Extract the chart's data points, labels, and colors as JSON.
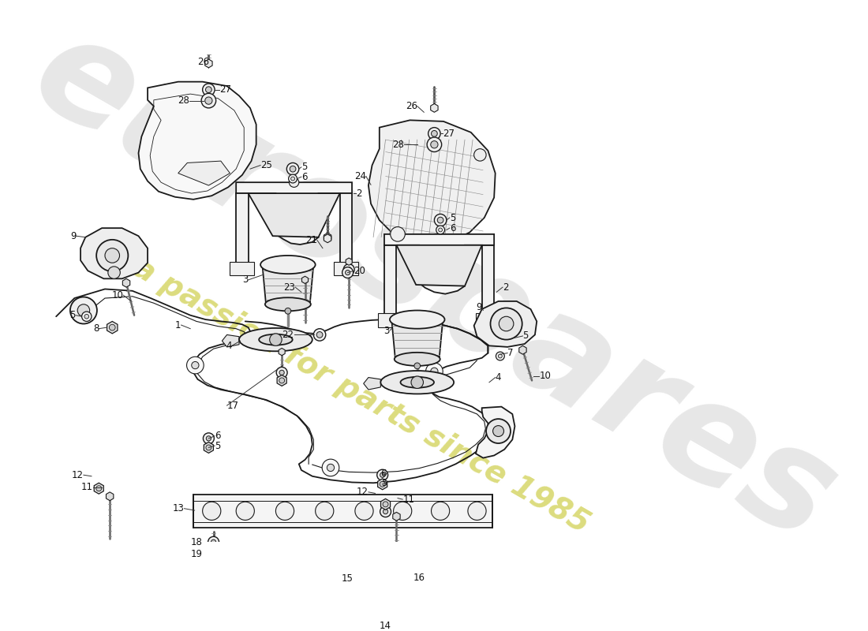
{
  "bg_color": "#ffffff",
  "line_color": "#1a1a1a",
  "watermark1": "eurospares",
  "watermark2": "a passion for parts since 1985",
  "wm1_color": "#d0d0d0",
  "wm2_color": "#d8d870",
  "label_fontsize": 8.5,
  "label_color": "#111111"
}
